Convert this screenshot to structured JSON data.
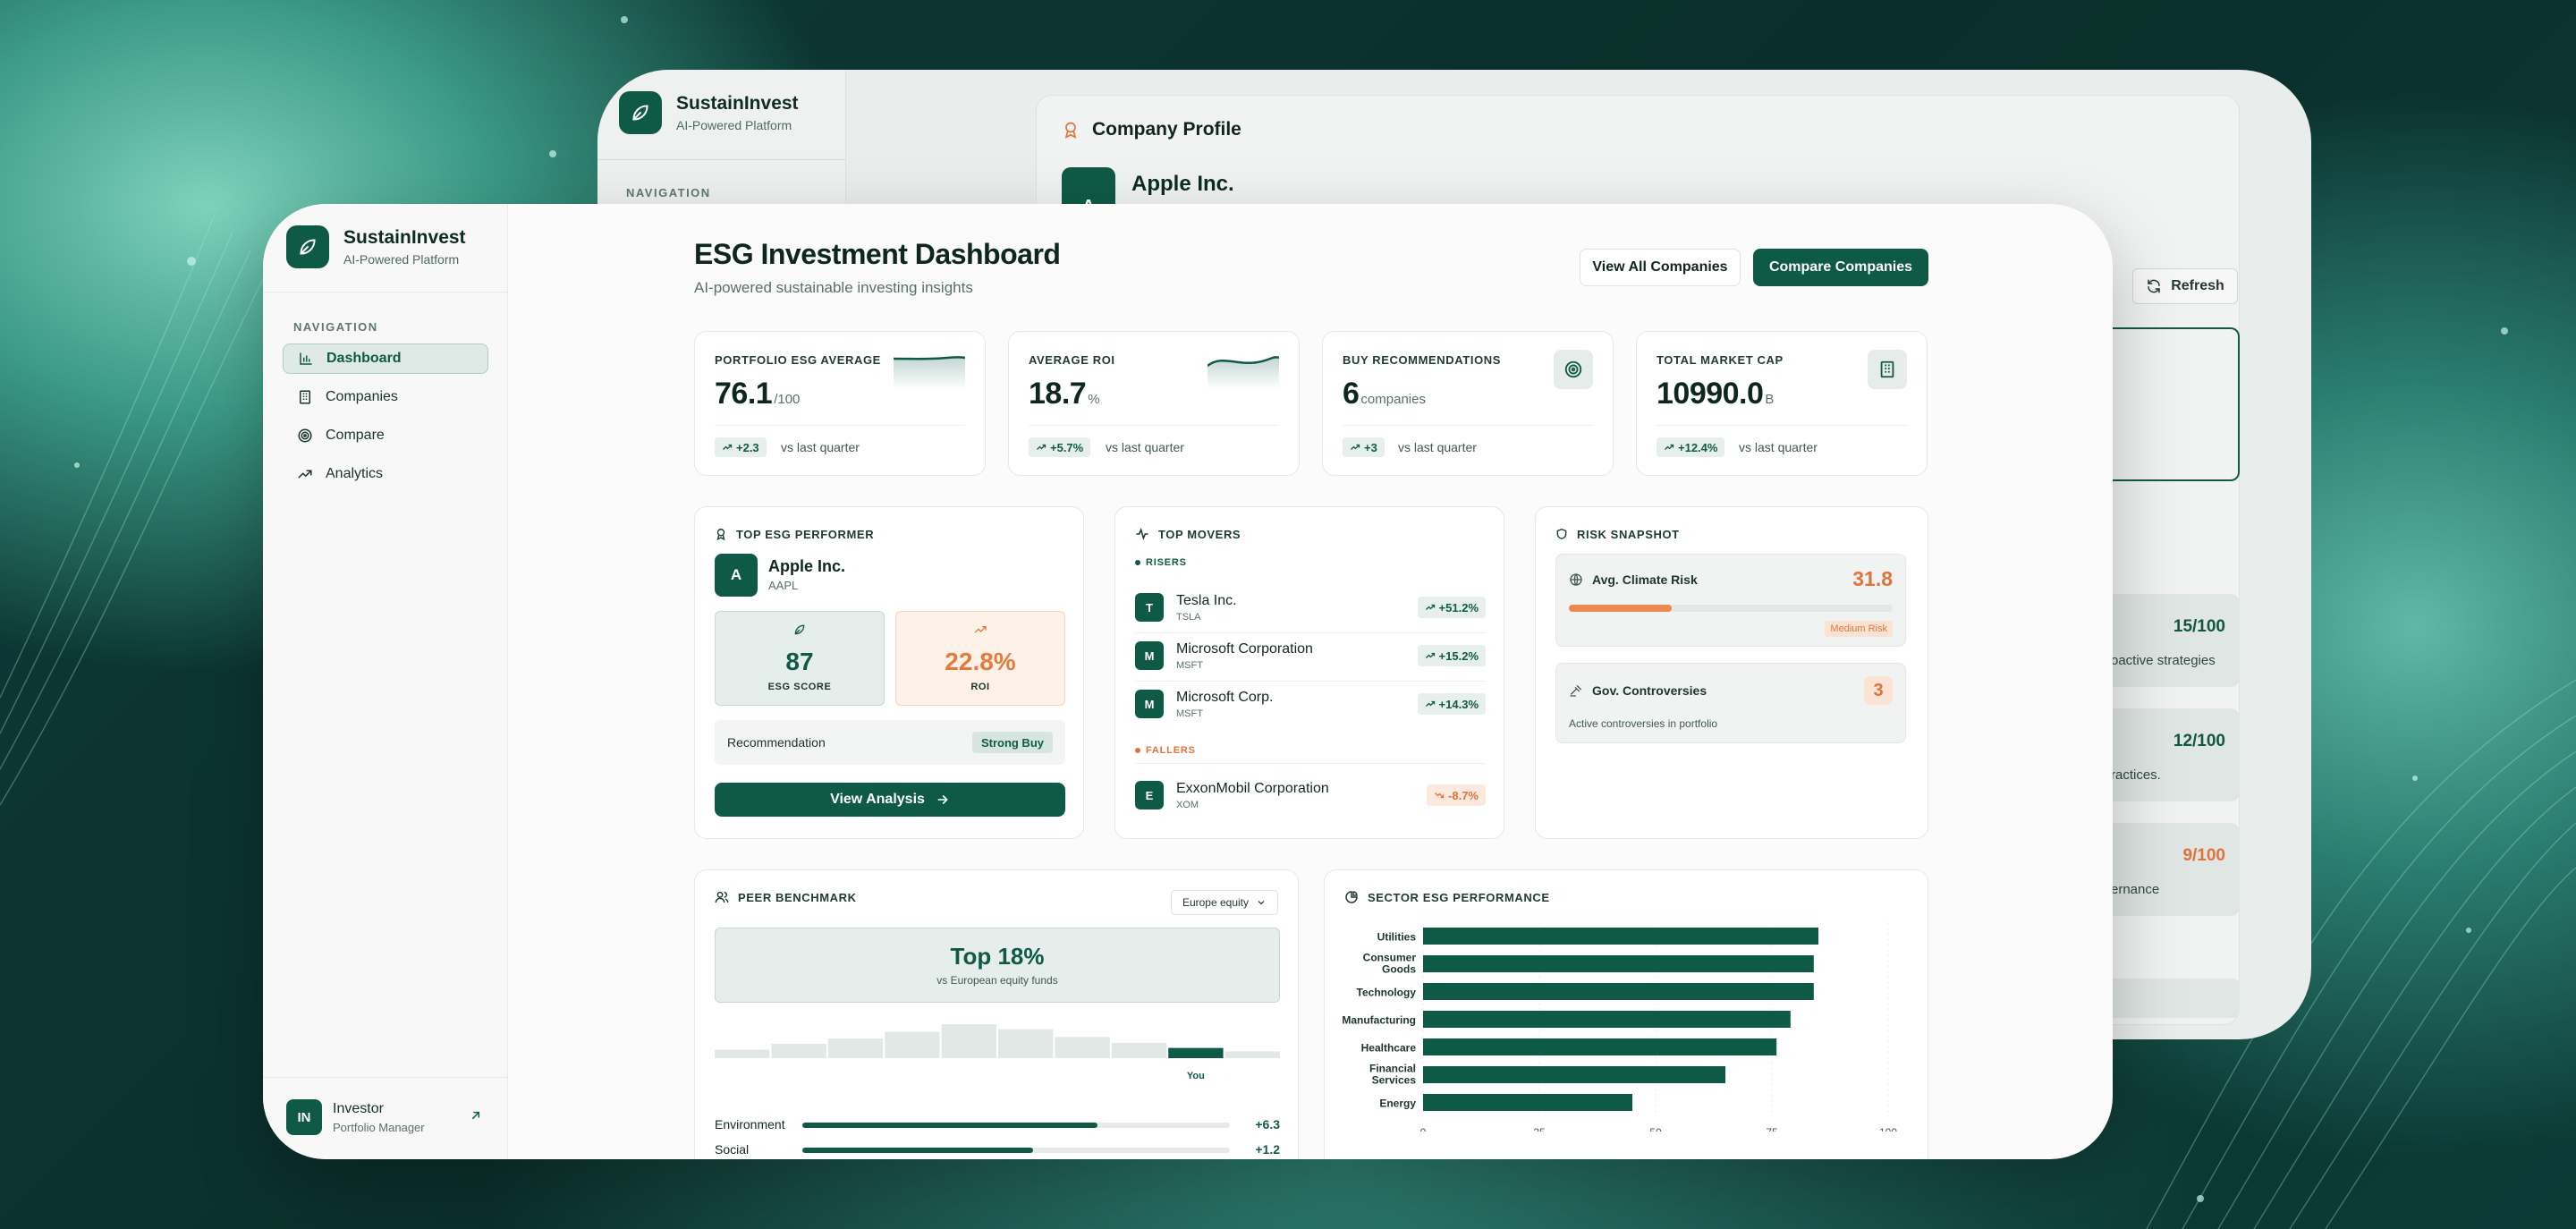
{
  "brand": {
    "name": "SustainInvest",
    "tagline": "AI-Powered Platform"
  },
  "back_window": {
    "nav_label": "NAVIGATION",
    "profile_title": "Company Profile",
    "company_initial": "A",
    "company_name": "Apple Inc.",
    "refresh_label": "Refresh",
    "rows": [
      {
        "score": "15/100",
        "text": "oactive strategies",
        "color": "#11563f"
      },
      {
        "score": "12/100",
        "text": "ractices.",
        "color": "#11563f"
      },
      {
        "score": "9/100",
        "text": "ernance",
        "color": "#e0733a"
      }
    ]
  },
  "sidebar": {
    "nav_label": "NAVIGATION",
    "items": [
      {
        "label": "Dashboard",
        "icon": "bar-chart-icon",
        "active": true
      },
      {
        "label": "Companies",
        "icon": "building-icon",
        "active": false
      },
      {
        "label": "Compare",
        "icon": "target-icon",
        "active": false
      },
      {
        "label": "Analytics",
        "icon": "trending-up-icon",
        "active": false
      }
    ],
    "user": {
      "initials": "IN",
      "name": "Investor",
      "role": "Portfolio Manager"
    }
  },
  "header": {
    "title": "ESG Investment Dashboard",
    "subtitle": "AI-powered sustainable investing insights",
    "view_all_label": "View All Companies",
    "compare_label": "Compare Companies"
  },
  "kpis": [
    {
      "label": "PORTFOLIO ESG AVERAGE",
      "value": "76.1",
      "unit": "/100",
      "change": "+2.3",
      "vs": "vs last quarter",
      "visual": "sparkline"
    },
    {
      "label": "AVERAGE ROI",
      "value": "18.7",
      "unit": "%",
      "change": "+5.7%",
      "vs": "vs last quarter",
      "visual": "sparkline"
    },
    {
      "label": "BUY RECOMMENDATIONS",
      "value": "6",
      "unit": "companies",
      "change": "+3",
      "vs": "vs last quarter",
      "visual": "target-icon"
    },
    {
      "label": "TOTAL MARKET CAP",
      "value": "10990.0",
      "unit": "B",
      "change": "+12.4%",
      "vs": "vs last quarter",
      "visual": "building-icon"
    }
  ],
  "top_performer": {
    "title": "TOP ESG PERFORMER",
    "initial": "A",
    "name": "Apple Inc.",
    "ticker": "AAPL",
    "esg_score": "87",
    "esg_label": "ESG SCORE",
    "roi": "22.8%",
    "roi_label": "ROI",
    "recommendation_label": "Recommendation",
    "recommendation": "Strong Buy",
    "button": "View Analysis"
  },
  "top_movers": {
    "title": "TOP MOVERS",
    "risers_label": "RISERS",
    "fallers_label": "FALLERS",
    "risers": [
      {
        "initial": "T",
        "name": "Tesla Inc.",
        "ticker": "TSLA",
        "change": "+51.2%"
      },
      {
        "initial": "M",
        "name": "Microsoft Corporation",
        "ticker": "MSFT",
        "change": "+15.2%"
      },
      {
        "initial": "M",
        "name": "Microsoft Corp.",
        "ticker": "MSFT",
        "change": "+14.3%"
      }
    ],
    "fallers": [
      {
        "initial": "E",
        "name": "ExxonMobil Corporation",
        "ticker": "XOM",
        "change": "-8.7%"
      }
    ]
  },
  "risk": {
    "title": "RISK SNAPSHOT",
    "climate_label": "Avg. Climate Risk",
    "climate_value": "31.8",
    "climate_level": 0.318,
    "climate_badge": "Medium Risk",
    "gov_label": "Gov. Controversies",
    "gov_value": "3",
    "gov_note": "Active controversies in portfolio"
  },
  "peer": {
    "title": "PEER BENCHMARK",
    "dropdown": "Europe equity",
    "headline": "Top 18%",
    "headline_sub": "vs European equity funds",
    "distribution": [
      0.25,
      0.42,
      0.58,
      0.78,
      1.0,
      0.85,
      0.62,
      0.45,
      0.3,
      0.2
    ],
    "you_index": 8,
    "you_label": "You",
    "rows": [
      {
        "label": "Environment",
        "level": 0.69,
        "value": "+6.3"
      },
      {
        "label": "Social",
        "level": 0.54,
        "value": "+1.2"
      }
    ]
  },
  "chart_data": {
    "type": "bar",
    "orientation": "horizontal",
    "title": "SECTOR ESG PERFORMANCE",
    "categories": [
      "Utilities",
      "Consumer Goods",
      "Technology",
      "Manufacturing",
      "Healthcare",
      "Financial Services",
      "Energy"
    ],
    "values": [
      85,
      84,
      84,
      79,
      76,
      65,
      45
    ],
    "xlim": [
      0,
      100
    ],
    "ticks": [
      0,
      25,
      50,
      75,
      100
    ],
    "color": "#0f5a47",
    "grid": true
  }
}
